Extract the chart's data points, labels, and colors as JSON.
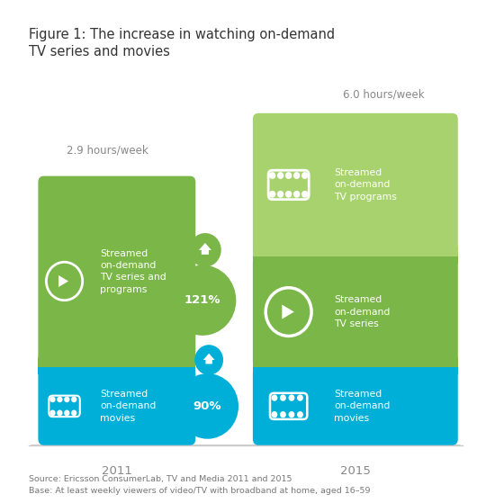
{
  "title_line1": "Figure 1: The increase in watching on-demand",
  "title_line2": "TV series and movies",
  "title_fontsize": 10.5,
  "bg_color": "#ffffff",
  "fig_width": 5.3,
  "fig_height": 5.59,
  "color_green_dark": "#7ab648",
  "color_green_light": "#a8d26e",
  "color_blue": "#00afd8",
  "color_axis": "#cccccc",
  "color_text_dark": "#555555",
  "year_2011_label": "2011",
  "year_2015_label": "2015",
  "hours_2011": "2.9 hours/week",
  "hours_2015": "6.0 hours/week",
  "pct_green": "121%",
  "pct_blue": "90%",
  "source_text": "Source: Ericsson ConsumerLab, TV and Media 2011 and 2015",
  "base_text": "Base: At least weekly viewers of video/TV with broadband at home, aged 16–59"
}
